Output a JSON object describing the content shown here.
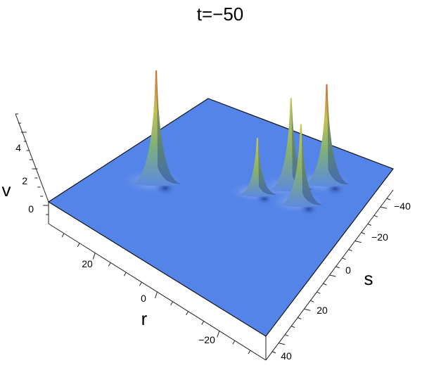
{
  "chart_data": {
    "type": "surface3d",
    "title": "t=−50",
    "xlabel": "s",
    "ylabel": "r",
    "zlabel": "v",
    "s_ticks": [
      "−40",
      "−20",
      "0",
      "20",
      "40"
    ],
    "r_ticks": [
      "20",
      "0",
      "−20"
    ],
    "v_ticks": [
      "0",
      "2",
      "4"
    ],
    "s_range": [
      -50,
      50
    ],
    "r_range": [
      -35,
      35
    ],
    "v_range": [
      -1,
      5
    ],
    "peaks": [
      {
        "s": 10,
        "r": 20,
        "v": 5.2
      },
      {
        "s": -10,
        "r": -5,
        "v": 2.6
      },
      {
        "s": -20,
        "r": -12,
        "v": 4.2
      },
      {
        "s": -15,
        "r": -18,
        "v": 3.7
      },
      {
        "s": -30,
        "r": -20,
        "v": 4.6
      }
    ],
    "colors": {
      "plane": "#5484e8",
      "edge": "#111111",
      "peak_low": "#5c8ae0",
      "peak_mid": "#9fbf5a",
      "peak_high": "#d9662e"
    }
  }
}
